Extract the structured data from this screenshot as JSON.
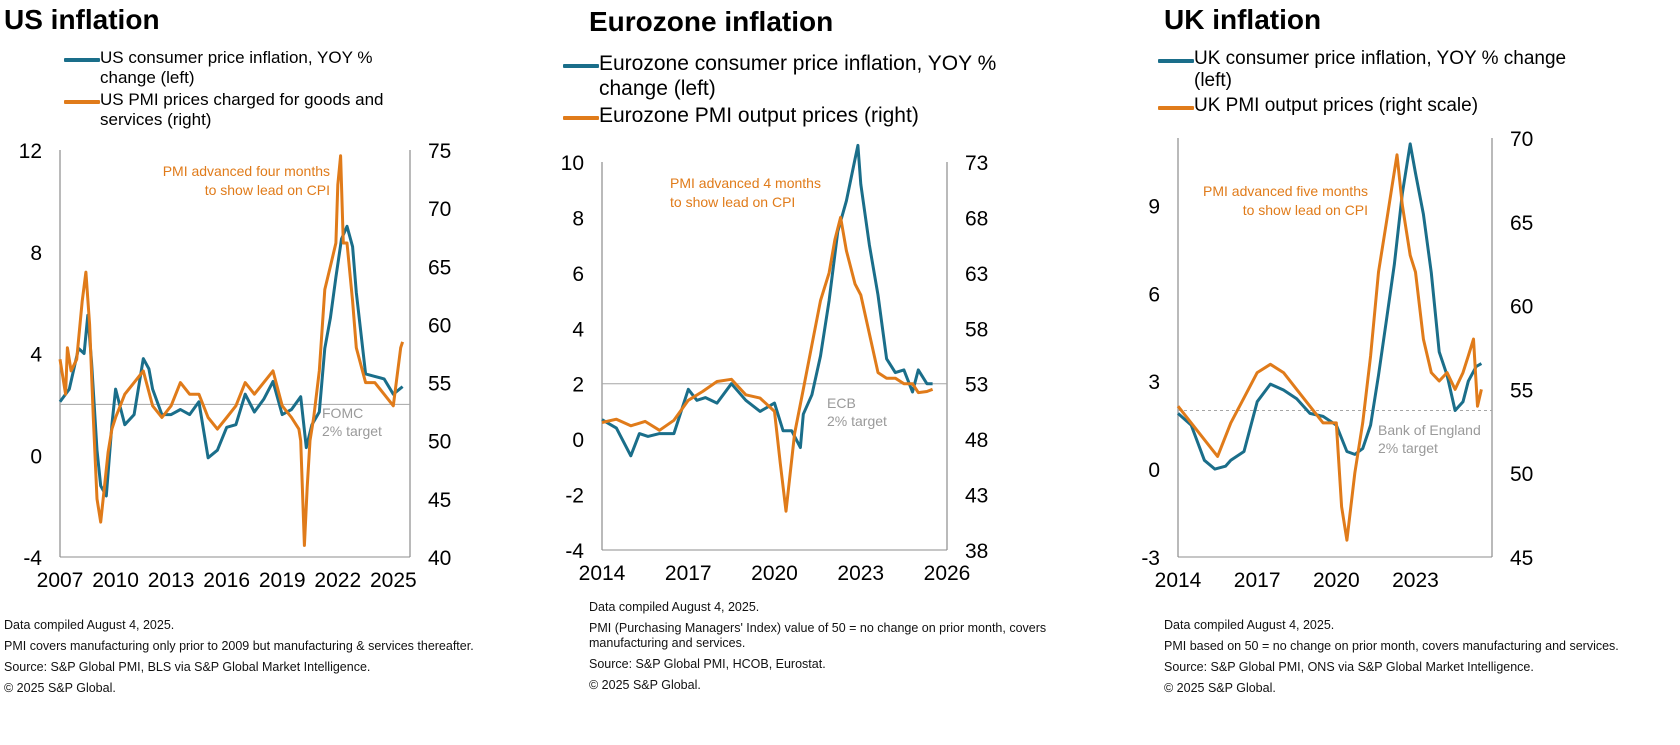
{
  "colors": {
    "teal": "#1a6e8a",
    "orange": "#e07b1a",
    "axis": "#8c8c8c",
    "target": "#a6a6a6"
  },
  "panels": [
    {
      "id": "us",
      "title": "US inflation",
      "legend": [
        {
          "text": "US consumer price inflation, YOY % change (left)",
          "color": "#1a6e8a"
        },
        {
          "text": " US PMI prices charged for goods and services (right)",
          "color": "#e07b1a"
        }
      ],
      "annotation": [
        "PMI advanced  four months",
        "to show lead on CPI"
      ],
      "target_label": [
        "FOMC",
        "2% target"
      ],
      "footer": [
        "Data compiled August 4, 2025.",
        "PMI covers manufacturing only prior to 2009 but manufacturing & services thereafter.",
        "Source: S&P Global PMI, BLS via S&P Global Market Intelligence.",
        "© 2025 S&P Global."
      ]
    },
    {
      "id": "ez",
      "title": "Eurozone inflation",
      "legend": [
        {
          "text": "Eurozone consumer price inflation, YOY % change (left)",
          "color": "#1a6e8a"
        },
        {
          "text": "Eurozone PMI output prices (right)",
          "color": "#e07b1a"
        }
      ],
      "annotation": [
        "PMI advanced  4 months",
        "to show lead on CPI"
      ],
      "target_label": [
        "ECB",
        "2% target"
      ],
      "footer": [
        "Data compiled August 4, 2025.",
        "PMI (Purchasing Managers' Index) value of 50 = no change on prior month, covers manufacturing and services.",
        "Source: S&P Global PMI, HCOB, Eurostat.",
        "© 2025 S&P Global."
      ]
    },
    {
      "id": "uk",
      "title": "UK inflation",
      "legend": [
        {
          "text": "UK consumer price inflation, YOY % change (left)",
          "color": "#1a6e8a"
        },
        {
          "text": "UK PMI output prices (right scale)",
          "color": "#e07b1a"
        }
      ],
      "annotation": [
        "PMI advanced five months",
        "to show lead on CPI"
      ],
      "target_label": [
        "Bank of England",
        "2% target"
      ],
      "footer": [
        "Data compiled August 4, 2025.",
        "PMI based on 50 = no change on prior month, covers manufacturing and services.",
        "Source: S&P Global PMI, ONS via S&P Global Market Intelligence.",
        "© 2025 S&P Global."
      ]
    }
  ],
  "chart_data": [
    {
      "type": "line",
      "title": "US inflation",
      "x_ticks": [
        "2007",
        "2010",
        "2013",
        "2016",
        "2019",
        "2022",
        "2025"
      ],
      "xlim": [
        2007,
        2025.9
      ],
      "ylim_left": [
        -4,
        12
      ],
      "y_ticks_left": [
        -4,
        0,
        4,
        8,
        12
      ],
      "ylim_right": [
        40,
        75
      ],
      "y_ticks_right": [
        40,
        45,
        50,
        55,
        60,
        65,
        70,
        75
      ],
      "reference_line_left": 2,
      "series": [
        {
          "name": "US consumer price inflation, YOY % change (left)",
          "axis": "left",
          "x": [
            2007,
            2007.5,
            2008,
            2008.3,
            2008.5,
            2008.7,
            2009,
            2009.2,
            2009.5,
            2009.8,
            2010,
            2010.5,
            2011,
            2011.5,
            2011.8,
            2012,
            2012.5,
            2013,
            2013.5,
            2014,
            2014.5,
            2015,
            2015.5,
            2016,
            2016.5,
            2017,
            2017.5,
            2018,
            2018.5,
            2019,
            2019.5,
            2020,
            2020.3,
            2020.6,
            2021,
            2021.3,
            2021.6,
            2021.9,
            2022.2,
            2022.5,
            2022.8,
            2023,
            2023.5,
            2024,
            2024.5,
            2025,
            2025.5
          ],
          "values": [
            2.1,
            2.6,
            4.2,
            4.0,
            5.5,
            3.7,
            0.2,
            -1.2,
            -1.6,
            1.2,
            2.6,
            1.2,
            1.6,
            3.8,
            3.4,
            2.6,
            1.6,
            1.6,
            1.8,
            1.6,
            2.1,
            -0.1,
            0.2,
            1.1,
            1.2,
            2.4,
            1.7,
            2.2,
            2.9,
            1.6,
            1.8,
            2.3,
            0.3,
            1.2,
            1.7,
            4.2,
            5.4,
            7.0,
            8.5,
            9.0,
            8.2,
            6.4,
            3.2,
            3.1,
            3.0,
            2.4,
            2.7
          ]
        },
        {
          "name": " US PMI prices charged for goods and services (right)",
          "axis": "right",
          "x": [
            2007,
            2007.3,
            2007.4,
            2007.6,
            2007.9,
            2008.2,
            2008.4,
            2008.6,
            2008.8,
            2009,
            2009.2,
            2009.4,
            2009.6,
            2009.8,
            2010,
            2010.5,
            2011,
            2011.5,
            2012,
            2012.5,
            2013,
            2013.5,
            2014,
            2014.5,
            2015,
            2015.5,
            2016,
            2016.5,
            2017,
            2017.5,
            2018,
            2018.5,
            2019,
            2019.5,
            2019.9,
            2020,
            2020.2,
            2020.35,
            2020.5,
            2020.7,
            2021,
            2021.3,
            2021.6,
            2021.9,
            2022,
            2022.15,
            2022.3,
            2022.5,
            2022.8,
            2023,
            2023.5,
            2024,
            2024.5,
            2025,
            2025.4,
            2025.5
          ],
          "values": [
            57,
            54,
            58,
            56,
            57,
            62,
            64.5,
            60,
            52,
            45,
            43,
            46,
            49,
            51,
            52,
            54,
            55,
            56,
            53,
            52,
            53,
            55,
            54,
            54,
            52,
            51,
            52,
            53,
            55,
            54,
            55,
            56,
            53,
            52,
            51,
            50,
            41,
            46,
            50,
            52,
            56,
            63,
            65,
            67,
            72,
            74.5,
            67,
            67,
            62,
            58,
            55,
            55,
            54,
            53,
            58,
            58.5
          ]
        }
      ]
    },
    {
      "type": "line",
      "title": "Eurozone inflation",
      "x_ticks": [
        "2014",
        "2017",
        "2020",
        "2023",
        "2026"
      ],
      "xlim": [
        2014,
        2026
      ],
      "ylim_left": [
        -4,
        10
      ],
      "y_ticks_left": [
        -4,
        -2,
        0,
        2,
        4,
        6,
        8,
        10
      ],
      "ylim_right": [
        38,
        73
      ],
      "y_ticks_right": [
        38,
        43,
        48,
        53,
        58,
        63,
        68,
        73
      ],
      "reference_line_left": 2,
      "series": [
        {
          "name": "Eurozone consumer price inflation, YOY % change (left)",
          "axis": "left",
          "x": [
            2014,
            2014.5,
            2015,
            2015.3,
            2015.6,
            2016,
            2016.5,
            2017,
            2017.3,
            2017.6,
            2018,
            2018.5,
            2019,
            2019.5,
            2020,
            2020.3,
            2020.6,
            2020.9,
            2021,
            2021.3,
            2021.6,
            2021.9,
            2022.2,
            2022.5,
            2022.8,
            2022.9,
            2023,
            2023.3,
            2023.6,
            2023.9,
            2024.2,
            2024.5,
            2024.8,
            2025,
            2025.3,
            2025.5
          ],
          "values": [
            0.7,
            0.4,
            -0.6,
            0.2,
            0.1,
            0.2,
            0.2,
            1.8,
            1.4,
            1.5,
            1.3,
            2.0,
            1.4,
            1.0,
            1.3,
            0.3,
            0.3,
            -0.3,
            0.9,
            1.6,
            3.0,
            5.0,
            7.5,
            8.6,
            10.1,
            10.6,
            9.2,
            7.0,
            5.2,
            2.9,
            2.4,
            2.5,
            1.7,
            2.5,
            2.0,
            2.0
          ]
        },
        {
          "name": "Eurozone PMI output prices (right)",
          "axis": "right",
          "x": [
            2014,
            2014.5,
            2015,
            2015.5,
            2016,
            2016.5,
            2017,
            2017.5,
            2018,
            2018.5,
            2019,
            2019.5,
            2020,
            2020.2,
            2020.4,
            2020.7,
            2021,
            2021.3,
            2021.6,
            2021.9,
            2022.1,
            2022.3,
            2022.5,
            2022.8,
            2023,
            2023.3,
            2023.6,
            2023.9,
            2024.2,
            2024.5,
            2024.8,
            2025,
            2025.3,
            2025.5
          ],
          "values": [
            49.5,
            49.8,
            49.2,
            49.6,
            48.8,
            49.7,
            51.5,
            52.3,
            53.2,
            53.4,
            52.0,
            51.7,
            50.5,
            45.8,
            41.5,
            48.5,
            52.5,
            56.5,
            60.5,
            63.0,
            66.0,
            68.0,
            65.0,
            62.0,
            61.0,
            57.5,
            54.0,
            53.5,
            53.5,
            53.0,
            53.0,
            52.2,
            52.3,
            52.5
          ]
        }
      ]
    },
    {
      "type": "line",
      "title": "UK inflation",
      "x_ticks": [
        "2014",
        "2017",
        "2020",
        "2023"
      ],
      "xlim": [
        2014,
        2025.9
      ],
      "ylim_left": [
        -3,
        11.3
      ],
      "y_ticks_left": [
        -3,
        0,
        3,
        6,
        9
      ],
      "ylim_right": [
        45,
        70
      ],
      "y_ticks_right": [
        45,
        50,
        55,
        60,
        65,
        70
      ],
      "reference_line_left": 2,
      "series": [
        {
          "name": "UK consumer price inflation, YOY % change (left)",
          "axis": "left",
          "x": [
            2014,
            2014.5,
            2015,
            2015.4,
            2015.8,
            2016,
            2016.5,
            2017,
            2017.5,
            2018,
            2018.5,
            2019,
            2019.5,
            2020,
            2020.4,
            2020.7,
            2021,
            2021.3,
            2021.6,
            2021.9,
            2022.2,
            2022.5,
            2022.8,
            2023,
            2023.3,
            2023.6,
            2023.9,
            2024.2,
            2024.5,
            2024.8,
            2025,
            2025.3,
            2025.5
          ],
          "values": [
            1.9,
            1.5,
            0.3,
            0.0,
            0.1,
            0.3,
            0.6,
            2.3,
            2.9,
            2.7,
            2.4,
            1.9,
            1.8,
            1.5,
            0.6,
            0.5,
            0.7,
            1.5,
            3.2,
            5.1,
            7.0,
            9.4,
            11.1,
            10.1,
            8.7,
            6.7,
            4.0,
            3.2,
            2.0,
            2.3,
            3.0,
            3.5,
            3.6
          ]
        },
        {
          "name": "UK PMI output prices (right scale)",
          "axis": "right",
          "x": [
            2014,
            2014.5,
            2015,
            2015.5,
            2016,
            2016.5,
            2017,
            2017.5,
            2018,
            2018.5,
            2019,
            2019.5,
            2020,
            2020.2,
            2020.4,
            2020.7,
            2021,
            2021.3,
            2021.6,
            2021.9,
            2022.1,
            2022.3,
            2022.5,
            2022.8,
            2023,
            2023.3,
            2023.6,
            2023.9,
            2024.2,
            2024.5,
            2024.8,
            2025,
            2025.2,
            2025.35,
            2025.5
          ],
          "values": [
            54,
            53,
            52,
            51,
            53,
            54.5,
            56,
            56.5,
            56,
            55,
            54,
            53,
            53,
            48,
            46,
            50,
            53,
            57,
            62,
            65,
            67,
            69,
            66,
            63,
            62,
            58,
            56,
            55.5,
            56,
            55,
            56,
            57,
            58,
            54,
            55
          ]
        }
      ]
    }
  ]
}
